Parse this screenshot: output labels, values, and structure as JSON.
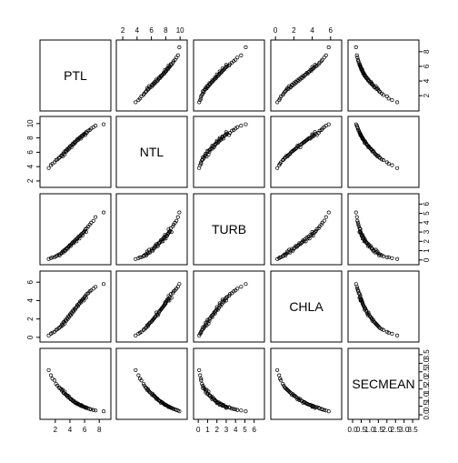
{
  "chart_data": {
    "type": "scatter",
    "title": "",
    "variables": [
      "PTL",
      "NTL",
      "TURB",
      "CHLA",
      "SECMEAN"
    ],
    "axis_ranges": {
      "PTL": [
        0.3,
        9.2
      ],
      "NTL": [
        1.5,
        10.6
      ],
      "TURB": [
        -0.2,
        6.8
      ],
      "CHLA": [
        -0.2,
        6.9
      ],
      "SECMEAN": [
        -0.1,
        3.7
      ]
    },
    "axis_ticks": {
      "PTL": [
        2,
        4,
        6,
        8
      ],
      "NTL": [
        2,
        4,
        6,
        8,
        10
      ],
      "TURB": [
        0,
        1,
        2,
        3,
        4,
        5,
        6
      ],
      "CHLA": [
        0,
        2,
        4,
        6
      ],
      "SECMEAN": [
        0.0,
        0.5,
        1.0,
        1.5,
        2.0,
        2.5,
        3.0,
        3.5
      ]
    },
    "top_axis_ticks": {
      "NTL": [
        2,
        4,
        6,
        8,
        10
      ],
      "CHLA": [
        0,
        2,
        4,
        6
      ]
    },
    "bottom_axis_ticks": {
      "PTL": [
        2,
        4,
        6,
        8
      ],
      "TURB": [
        0,
        1,
        2,
        3,
        4,
        5,
        6
      ],
      "SECMEAN": [
        "0.0",
        "0.5",
        "1.0",
        "1.5",
        "2.0",
        "2.5",
        "3.0",
        "3.5"
      ]
    },
    "left_axis_ticks": {
      "NTL": [
        2,
        4,
        6,
        8,
        10
      ],
      "CHLA": [
        0,
        2,
        4,
        6
      ]
    },
    "right_axis_ticks": {
      "PTL": [
        2,
        4,
        6,
        8
      ],
      "TURB": [
        0,
        1,
        2,
        3,
        4,
        5,
        6
      ],
      "SECMEAN": [
        "0.0",
        "0.5",
        "1.0",
        "1.5",
        "2.0",
        "2.5",
        "3.0",
        "3.5"
      ]
    },
    "points": {
      "PTL": [
        1.1,
        1.4,
        1.6,
        1.9,
        2.1,
        2.3,
        2.5,
        2.6,
        2.8,
        2.9,
        3.0,
        3.1,
        3.2,
        3.3,
        3.4,
        3.5,
        3.6,
        3.7,
        3.8,
        3.9,
        4.0,
        4.1,
        4.2,
        4.3,
        4.4,
        4.5,
        4.6,
        4.7,
        4.8,
        4.9,
        5.0,
        5.1,
        5.2,
        5.3,
        5.4,
        5.5,
        5.6,
        5.7,
        5.8,
        5.9,
        6.0,
        6.1,
        6.2,
        6.3,
        6.5,
        6.7,
        6.9,
        7.2,
        7.5,
        8.6
      ],
      "NTL": [
        3.8,
        4.2,
        4.4,
        4.6,
        4.9,
        5.0,
        5.2,
        5.3,
        5.5,
        5.6,
        5.4,
        5.8,
        6.0,
        5.7,
        6.2,
        6.1,
        6.4,
        6.3,
        6.6,
        6.5,
        6.8,
        6.9,
        6.7,
        7.0,
        7.2,
        7.1,
        7.4,
        7.3,
        7.5,
        7.6,
        7.8,
        7.7,
        7.9,
        8.0,
        8.1,
        7.9,
        8.3,
        8.2,
        8.4,
        8.5,
        8.6,
        8.4,
        8.8,
        8.7,
        9.0,
        9.1,
        9.3,
        9.5,
        9.7,
        9.9
      ],
      "TURB": [
        0.1,
        0.2,
        0.3,
        0.3,
        0.4,
        0.5,
        0.6,
        0.5,
        0.7,
        0.8,
        0.9,
        0.8,
        1.0,
        1.1,
        1.0,
        1.2,
        1.3,
        1.2,
        1.4,
        1.5,
        1.6,
        1.5,
        1.7,
        1.8,
        1.9,
        1.8,
        2.0,
        2.1,
        2.2,
        2.0,
        2.3,
        2.4,
        2.5,
        2.3,
        2.6,
        2.7,
        2.8,
        2.6,
        2.9,
        3.0,
        3.1,
        3.3,
        3.0,
        3.4,
        3.6,
        3.8,
        4.0,
        4.2,
        4.6,
        5.1
      ],
      "CHLA": [
        0.2,
        0.4,
        0.5,
        0.6,
        0.8,
        0.9,
        1.0,
        1.1,
        1.2,
        1.4,
        1.3,
        1.6,
        1.7,
        1.5,
        1.9,
        1.8,
        2.1,
        2.0,
        2.3,
        2.2,
        2.5,
        2.4,
        2.7,
        2.6,
        2.9,
        2.8,
        3.1,
        3.0,
        3.2,
        3.3,
        3.5,
        3.4,
        3.6,
        3.7,
        3.9,
        3.8,
        4.0,
        4.1,
        4.2,
        4.0,
        4.4,
        4.5,
        4.3,
        4.7,
        4.8,
        5.0,
        5.1,
        5.3,
        5.5,
        5.8
      ],
      "SECMEAN": [
        2.6,
        2.3,
        2.1,
        2.0,
        1.8,
        1.7,
        1.6,
        1.55,
        1.5,
        1.4,
        1.45,
        1.3,
        1.25,
        1.35,
        1.2,
        1.15,
        1.1,
        1.12,
        1.0,
        1.05,
        0.95,
        0.9,
        0.92,
        0.85,
        0.8,
        0.82,
        0.75,
        0.7,
        0.72,
        0.68,
        0.62,
        0.65,
        0.6,
        0.58,
        0.55,
        0.57,
        0.5,
        0.52,
        0.48,
        0.46,
        0.44,
        0.45,
        0.4,
        0.41,
        0.36,
        0.34,
        0.31,
        0.28,
        0.25,
        0.2
      ]
    }
  }
}
